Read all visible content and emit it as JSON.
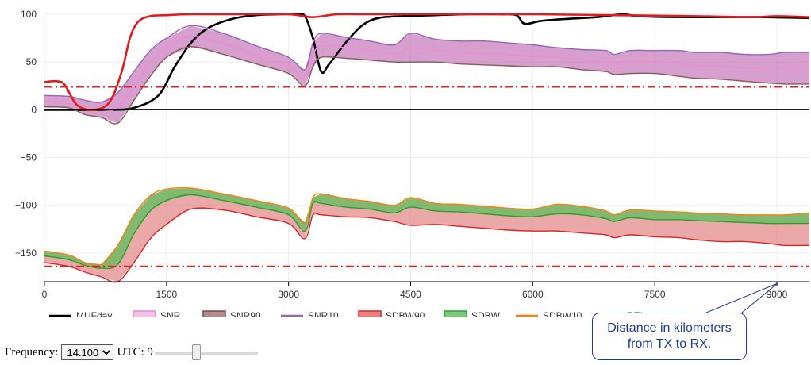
{
  "chart_data": {
    "type": "line",
    "xlabel": "",
    "ylabel": "",
    "xlim": [
      0,
      9400
    ],
    "ylim": [
      -180,
      100
    ],
    "x_ticks": [
      0,
      1500,
      3000,
      4500,
      6000,
      7500,
      9000
    ],
    "x_tick_labels": [
      "0",
      "1500",
      "3000",
      "4500",
      "6000",
      "7500",
      "9000"
    ],
    "y_ticks": [
      100,
      50,
      0,
      -50,
      -100,
      -150
    ],
    "y_tick_labels": [
      "100",
      "50",
      "0",
      "−50",
      "−100",
      "−150"
    ],
    "reference_lines": [
      {
        "name": "threshold-upper",
        "y": 24,
        "color": "#d62728"
      },
      {
        "name": "threshold-lower",
        "y": -164,
        "color": "#d62728"
      }
    ],
    "bands": [
      {
        "name": "SNR band",
        "color": "#c06cb2",
        "x": [
          0,
          300,
          500,
          700,
          900,
          1100,
          1300,
          1500,
          1800,
          2200,
          2600,
          3000,
          3200,
          3300,
          3400,
          3700,
          4000,
          4300,
          4500,
          4800,
          5100,
          5400,
          5700,
          6000,
          6300,
          6600,
          6900,
          7000,
          7200,
          7500,
          7800,
          8000,
          8300,
          8600,
          8900,
          9100,
          9400
        ],
        "upper": [
          15,
          14,
          10,
          8,
          18,
          40,
          62,
          75,
          88,
          80,
          67,
          55,
          42,
          70,
          80,
          76,
          72,
          68,
          80,
          74,
          72,
          72,
          70,
          68,
          65,
          63,
          62,
          58,
          62,
          62,
          62,
          60,
          60,
          58,
          58,
          60,
          60
        ],
        "lower": [
          3,
          2,
          -5,
          -8,
          -14,
          10,
          35,
          55,
          66,
          58,
          48,
          38,
          25,
          45,
          55,
          54,
          52,
          50,
          50,
          50,
          48,
          47,
          46,
          45,
          45,
          42,
          40,
          37,
          38,
          38,
          35,
          33,
          32,
          30,
          28,
          27,
          27
        ]
      },
      {
        "name": "SDBW band",
        "color": "#e07a7a",
        "x": [
          0,
          300,
          500,
          700,
          900,
          1100,
          1300,
          1500,
          1800,
          2200,
          2600,
          3000,
          3200,
          3300,
          3400,
          3700,
          4000,
          4300,
          4500,
          4800,
          5100,
          5400,
          5700,
          6000,
          6300,
          6600,
          6900,
          7000,
          7200,
          7500,
          7800,
          8000,
          8300,
          8600,
          8900,
          9100,
          9400
        ],
        "upper": [
          -148,
          -152,
          -160,
          -162,
          -142,
          -110,
          -90,
          -83,
          -82,
          -88,
          -95,
          -103,
          -118,
          -92,
          -88,
          -93,
          -96,
          -100,
          -92,
          -98,
          -99,
          -101,
          -103,
          -104,
          -99,
          -101,
          -106,
          -110,
          -105,
          -106,
          -107,
          -108,
          -109,
          -110,
          -110,
          -110,
          -108
        ],
        "lower": [
          -160,
          -164,
          -170,
          -175,
          -180,
          -160,
          -135,
          -120,
          -104,
          -105,
          -112,
          -119,
          -135,
          -110,
          -110,
          -112,
          -113,
          -117,
          -121,
          -120,
          -122,
          -124,
          -126,
          -127,
          -127,
          -129,
          -131,
          -134,
          -131,
          -133,
          -134,
          -136,
          -138,
          -138,
          -140,
          -142,
          -142
        ]
      }
    ],
    "series": [
      {
        "name": "MUFday",
        "color": "#000000",
        "x": [
          0,
          500,
          800,
          1100,
          1400,
          1600,
          1800,
          2000,
          2300,
          2600,
          2900,
          3100,
          3200,
          3300,
          3400,
          3500,
          3700,
          3900,
          4100,
          4400,
          4800,
          5200,
          5600,
          5800,
          5900,
          6100,
          6400,
          6800,
          7100,
          7300,
          7800,
          8300,
          8800,
          9400
        ],
        "y": [
          0,
          0,
          0,
          2,
          15,
          45,
          70,
          85,
          95,
          99,
          100,
          100,
          98,
          75,
          40,
          48,
          70,
          88,
          96,
          98,
          99,
          100,
          100,
          99,
          90,
          93,
          95,
          97,
          100,
          98,
          97,
          97,
          97,
          96
        ]
      },
      {
        "name": "SNR",
        "color": "#f08ad6",
        "x": [
          0,
          300,
          500,
          700,
          900,
          1100,
          1300,
          1500,
          1800,
          2200,
          2600,
          3000,
          3200,
          3300,
          3400,
          3700,
          4000,
          4300,
          4500,
          4800,
          5100,
          5400,
          5700,
          6000,
          6300,
          6600,
          6900,
          7000,
          7200,
          7500,
          7800,
          8000,
          8300,
          8600,
          8900,
          9100,
          9400
        ],
        "y": [
          9,
          8,
          2,
          0,
          2,
          25,
          49,
          65,
          77,
          69,
          57,
          46,
          33,
          57,
          67,
          65,
          62,
          59,
          65,
          62,
          60,
          59,
          58,
          56,
          55,
          52,
          51,
          47,
          50,
          50,
          48,
          46,
          46,
          44,
          43,
          43,
          43
        ]
      },
      {
        "name": "SNR90",
        "color": "#8a5a5a",
        "x": [
          0,
          300,
          500,
          700,
          900,
          1100,
          1300,
          1500,
          1800,
          2200,
          2600,
          3000,
          3200,
          3300,
          3400,
          3700,
          4000,
          4300,
          4500,
          4800,
          5100,
          5400,
          5700,
          6000,
          6300,
          6600,
          6900,
          7000,
          7200,
          7500,
          7800,
          8000,
          8300,
          8600,
          8900,
          9100,
          9400
        ],
        "y": [
          3,
          2,
          -5,
          -8,
          -14,
          10,
          35,
          55,
          66,
          58,
          48,
          38,
          25,
          45,
          55,
          54,
          52,
          50,
          50,
          50,
          48,
          47,
          46,
          45,
          45,
          42,
          40,
          37,
          38,
          38,
          35,
          33,
          32,
          30,
          28,
          27,
          27
        ]
      },
      {
        "name": "SNR10",
        "color": "#9467bd",
        "x": [
          0,
          300,
          500,
          700,
          900,
          1100,
          1300,
          1500,
          1800,
          2200,
          2600,
          3000,
          3200,
          3300,
          3400,
          3700,
          4000,
          4300,
          4500,
          4800,
          5100,
          5400,
          5700,
          6000,
          6300,
          6600,
          6900,
          7000,
          7200,
          7500,
          7800,
          8000,
          8300,
          8600,
          8900,
          9100,
          9400
        ],
        "y": [
          15,
          14,
          10,
          8,
          18,
          40,
          62,
          75,
          88,
          80,
          67,
          55,
          42,
          70,
          80,
          76,
          72,
          68,
          80,
          74,
          72,
          72,
          70,
          68,
          65,
          63,
          62,
          58,
          62,
          62,
          62,
          60,
          60,
          58,
          58,
          60,
          60
        ]
      },
      {
        "name": "SDBW90",
        "color": "#d62728",
        "x": [
          0,
          300,
          500,
          700,
          900,
          1100,
          1300,
          1500,
          1800,
          2200,
          2600,
          3000,
          3200,
          3300,
          3400,
          3700,
          4000,
          4300,
          4500,
          4800,
          5100,
          5400,
          5700,
          6000,
          6300,
          6600,
          6900,
          7000,
          7200,
          7500,
          7800,
          8000,
          8300,
          8600,
          8900,
          9100,
          9400
        ],
        "y": [
          -160,
          -164,
          -170,
          -175,
          -180,
          -160,
          -135,
          -120,
          -104,
          -105,
          -112,
          -119,
          -135,
          -110,
          -110,
          -112,
          -113,
          -117,
          -121,
          -120,
          -122,
          -124,
          -126,
          -127,
          -127,
          -129,
          -131,
          -134,
          -131,
          -133,
          -134,
          -136,
          -138,
          -138,
          -140,
          -142,
          -142
        ]
      },
      {
        "name": "SDBW",
        "color": "#2ca02c",
        "x": [
          0,
          300,
          500,
          700,
          900,
          1100,
          1300,
          1500,
          1800,
          2200,
          2600,
          3000,
          3200,
          3300,
          3400,
          3700,
          4000,
          4300,
          4500,
          4800,
          5100,
          5400,
          5700,
          6000,
          6300,
          6600,
          6900,
          7000,
          7200,
          7500,
          7800,
          8000,
          8300,
          8600,
          8900,
          9100,
          9400
        ],
        "y": [
          -153,
          -157,
          -163,
          -166,
          -162,
          -130,
          -106,
          -95,
          -89,
          -95,
          -102,
          -110,
          -127,
          -98,
          -98,
          -102,
          -104,
          -108,
          -102,
          -106,
          -107,
          -109,
          -111,
          -112,
          -109,
          -110,
          -114,
          -117,
          -113,
          -115,
          -115,
          -116,
          -117,
          -118,
          -119,
          -119,
          -119
        ]
      },
      {
        "name": "SDBW10",
        "color": "#ff7f0e",
        "x": [
          0,
          300,
          500,
          700,
          900,
          1100,
          1300,
          1500,
          1800,
          2200,
          2600,
          3000,
          3200,
          3300,
          3400,
          3700,
          4000,
          4300,
          4500,
          4800,
          5100,
          5400,
          5700,
          6000,
          6300,
          6600,
          6900,
          7000,
          7200,
          7500,
          7800,
          8000,
          8300,
          8600,
          8900,
          9100,
          9400
        ],
        "y": [
          -148,
          -152,
          -160,
          -162,
          -142,
          -110,
          -90,
          -83,
          -82,
          -88,
          -95,
          -103,
          -118,
          -92,
          -88,
          -93,
          -96,
          -100,
          -92,
          -98,
          -99,
          -101,
          -103,
          -104,
          -99,
          -101,
          -106,
          -110,
          -105,
          -106,
          -107,
          -108,
          -109,
          -110,
          -110,
          -110,
          -108
        ]
      },
      {
        "name": "REL",
        "color": "#e31a1c",
        "x": [
          0,
          150,
          250,
          400,
          600,
          800,
          950,
          1050,
          1150,
          1300,
          1500,
          1800,
          2500,
          3000,
          3300,
          3600,
          4000,
          5000,
          6000,
          7000,
          8000,
          8700,
          9000,
          9400
        ],
        "y": [
          29,
          30,
          26,
          5,
          0,
          8,
          40,
          75,
          92,
          98,
          99,
          100,
          100,
          100,
          97,
          100,
          100,
          100,
          100,
          99,
          98,
          97,
          98,
          97
        ]
      }
    ],
    "legend": [
      {
        "label": "MUFday",
        "kind": "line",
        "color": "#000000"
      },
      {
        "label": "SNR",
        "kind": "box",
        "fill": "#f4c2e9",
        "stroke": "#e98ad3"
      },
      {
        "label": "SNR90",
        "kind": "box",
        "fill": "#b58a8a",
        "stroke": "#7a4d4d"
      },
      {
        "label": "SNR10",
        "kind": "line",
        "color": "#9467bd"
      },
      {
        "label": "SDBW90",
        "kind": "box",
        "fill": "#e88080",
        "stroke": "#d62728"
      },
      {
        "label": "SDBW",
        "kind": "box",
        "fill": "#7bc77b",
        "stroke": "#2ca02c"
      },
      {
        "label": "SDBW10",
        "kind": "line",
        "color": "#ff7f0e"
      },
      {
        "label": "REL",
        "kind": "line",
        "color": "#e31a1c"
      }
    ]
  },
  "controls": {
    "frequency_label": "Frequency:",
    "frequency_value": "14.100",
    "utc_label": "UTC: 9",
    "utc_hour": 9,
    "utc_max": 23
  },
  "annotation": {
    "line1": "Distance in kilometers",
    "line2": "from TX to RX."
  }
}
